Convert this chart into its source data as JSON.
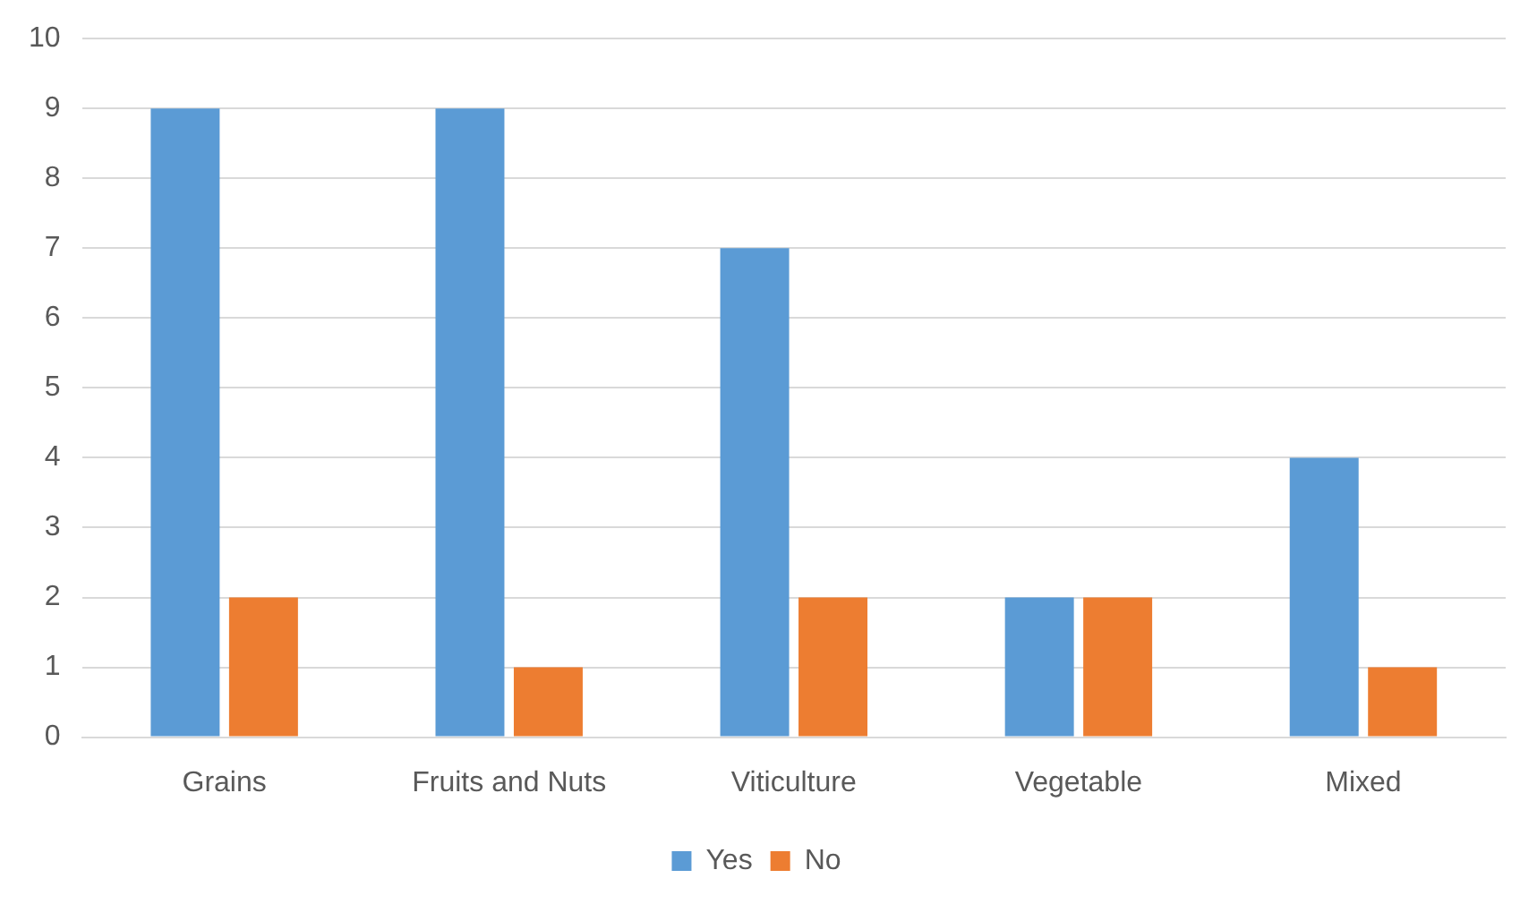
{
  "chart_data": {
    "type": "bar",
    "categories": [
      "Grains",
      "Fruits and Nuts",
      "Viticulture",
      "Vegetable",
      "Mixed"
    ],
    "series": [
      {
        "name": "Yes",
        "color": "#5b9bd5",
        "values": [
          9,
          9,
          7,
          2,
          4
        ]
      },
      {
        "name": "No",
        "color": "#ed7d31",
        "values": [
          2,
          1,
          2,
          2,
          1
        ]
      }
    ],
    "ylim": [
      0,
      10
    ],
    "yticks": [
      0,
      1,
      2,
      3,
      4,
      5,
      6,
      7,
      8,
      9,
      10
    ],
    "grid": "y",
    "legend": "bottom"
  }
}
